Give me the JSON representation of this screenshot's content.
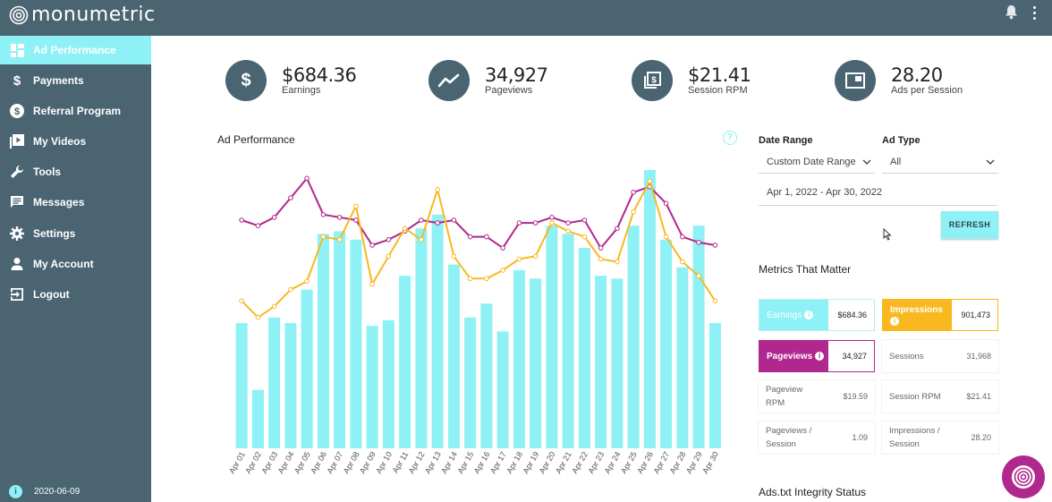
{
  "app": {
    "brand": "monumetric"
  },
  "sidebar": {
    "items": [
      {
        "label": "Ad Performance",
        "icon": "dashboard-icon",
        "active": true
      },
      {
        "label": "Payments",
        "icon": "dollar-icon"
      },
      {
        "label": "Referral Program",
        "icon": "dollar-circle-icon"
      },
      {
        "label": "My Videos",
        "icon": "video-library-icon"
      },
      {
        "label": "Tools",
        "icon": "wrench-icon"
      },
      {
        "label": "Messages",
        "icon": "message-icon"
      },
      {
        "label": "Settings",
        "icon": "gear-icon"
      },
      {
        "label": "My Account",
        "icon": "person-icon"
      },
      {
        "label": "Logout",
        "icon": "logout-icon"
      }
    ],
    "footer_icon_glyph": "i",
    "footer_version": "2020-06-09"
  },
  "kpis": [
    {
      "value": "$684.36",
      "label": "Earnings",
      "icon": "dollar-icon"
    },
    {
      "value": "34,927",
      "label": "Pageviews",
      "icon": "trend-line-icon"
    },
    {
      "value": "$21.41",
      "label": "Session RPM",
      "icon": "money-stack-icon"
    },
    {
      "value": "28.20",
      "label": "Ads per Session",
      "icon": "ad-window-icon"
    }
  ],
  "chart": {
    "title": "Ad Performance",
    "help_glyph": "?"
  },
  "filters": {
    "date_range_label": "Date Range",
    "date_range_value": "Custom Date Range",
    "ad_type_label": "Ad Type",
    "ad_type_value": "All",
    "date_text": "Apr 1, 2022 - Apr 30, 2022",
    "refresh_label": "REFRESH"
  },
  "metrics": {
    "title": "Metrics That Matter",
    "info_glyph": "i",
    "earnings": {
      "label": "Earnings",
      "value": "$684.36"
    },
    "impressions": {
      "label": "Impressions",
      "value": "901,473"
    },
    "pageviews": {
      "label": "Pageviews",
      "value": "34,927"
    },
    "sessions": {
      "label": "Sessions",
      "value": "31,968"
    },
    "pageview_rpm": {
      "label_1": "Pageview",
      "label_2": "RPM",
      "value": "$19.59"
    },
    "session_rpm": {
      "label": "Session RPM",
      "value": "$21.41"
    },
    "pv_per_session": {
      "label_1": "Pageviews /",
      "label_2": "Session",
      "value": "1.09"
    },
    "imp_per_session": {
      "label_1": "Impressions /",
      "label_2": "Session",
      "value": "28.20"
    }
  },
  "ads_txt_title": "Ads.txt Integrity Status",
  "colors": {
    "sidebar": "#4a6472",
    "bars": "#8ef1f5",
    "pageviews": "#b0278e",
    "impressions": "#f9b820"
  },
  "chart_data": {
    "type": "bar",
    "title": "Ad Performance",
    "categories": [
      "Apr 01",
      "Apr 02",
      "Apr 03",
      "Apr 04",
      "Apr 05",
      "Apr 06",
      "Apr 07",
      "Apr 08",
      "Apr 09",
      "Apr 10",
      "Apr 11",
      "Apr 12",
      "Apr 13",
      "Apr 14",
      "Apr 15",
      "Apr 16",
      "Apr 17",
      "Apr 18",
      "Apr 19",
      "Apr 20",
      "Apr 21",
      "Apr 22",
      "Apr 23",
      "Apr 24",
      "Apr 25",
      "Apr 26",
      "Apr 27",
      "Apr 28",
      "Apr 29",
      "Apr 30"
    ],
    "ylim": [
      0,
      100
    ],
    "series": [
      {
        "name": "Earnings",
        "kind": "bar",
        "color": "#8ef1f5",
        "values": [
          45,
          21,
          47,
          45,
          57,
          77,
          78,
          75,
          44,
          46,
          62,
          79,
          84,
          66,
          47,
          52,
          42,
          64,
          61,
          80,
          77,
          72,
          62,
          61,
          80,
          100,
          75,
          65,
          80,
          45
        ]
      },
      {
        "name": "Pageviews",
        "kind": "line",
        "color": "#b0278e",
        "values": [
          82,
          80,
          83,
          90,
          97,
          84,
          83,
          82,
          73,
          75,
          78,
          82,
          81,
          82,
          76,
          76,
          72,
          81,
          81,
          83,
          81,
          82,
          72,
          79,
          92,
          94,
          88,
          76,
          74,
          73
        ]
      },
      {
        "name": "Impressions",
        "kind": "line",
        "color": "#f9b820",
        "values": [
          53,
          47,
          51,
          57,
          60,
          76,
          75,
          87,
          59,
          69,
          79,
          75,
          93,
          69,
          61,
          61,
          64,
          68,
          69,
          81,
          78,
          76,
          68,
          67,
          85,
          96,
          76,
          67,
          62,
          53
        ]
      }
    ]
  }
}
